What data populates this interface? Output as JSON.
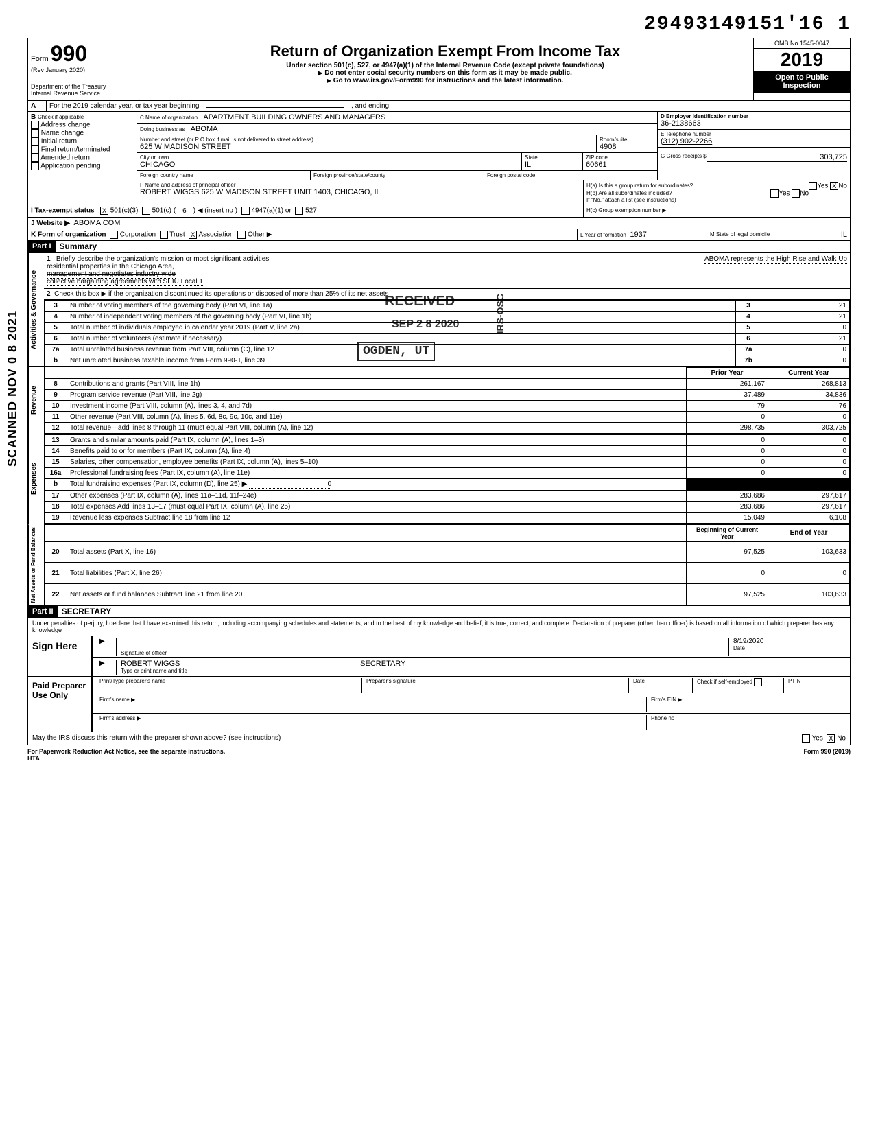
{
  "doc_id": "29493149151'16 1",
  "scanned_text": "SCANNED NOV 0 8 2021",
  "header": {
    "form_label": "Form",
    "form_number": "990",
    "rev": "(Rev January 2020)",
    "dept": "Department of the Treasury",
    "irs": "Internal Revenue Service",
    "title": "Return of Organization Exempt From Income Tax",
    "subtitle1": "Under section 501(c), 527, or 4947(a)(1) of the Internal Revenue Code (except private foundations)",
    "subtitle2": "Do not enter social security numbers on this form as it may be made public.",
    "subtitle3": "Go to www.irs.gov/Form990 for instructions and the latest information.",
    "omb": "OMB No 1545-0047",
    "year_prefix": "20",
    "year_suffix": "19",
    "open_public1": "Open to Public",
    "open_public2": "Inspection"
  },
  "section_a": {
    "line": "For the 2019 calendar year, or tax year beginning",
    "ending": ", and ending"
  },
  "section_b": {
    "header": "Check if applicable",
    "items": [
      "Address change",
      "Name change",
      "Initial return",
      "Final return/terminated",
      "Amended return",
      "Application pending"
    ]
  },
  "section_c": {
    "name_label": "C  Name of organization",
    "name": "APARTMENT BUILDING OWNERS AND MANAGERS",
    "dba_label": "Doing business as",
    "dba": "ABOMA",
    "addr_label": "Number and street (or P O box if mail is not delivered to street address)",
    "addr": "625 W MADISON STREET",
    "room_label": "Room/suite",
    "room": "4908",
    "city_label": "City or town",
    "city": "CHICAGO",
    "state_label": "State",
    "state": "IL",
    "zip_label": "ZIP code",
    "zip": "60661",
    "foreign_country": "Foreign country name",
    "foreign_province": "Foreign province/state/county",
    "foreign_postal": "Foreign postal code"
  },
  "section_d": {
    "label": "D   Employer identification number",
    "value": "36-2138663"
  },
  "section_e": {
    "label": "E   Telephone number",
    "value": "(312) 902-2266"
  },
  "section_g": {
    "label": "G   Gross receipts $",
    "value": "303,725"
  },
  "section_f": {
    "label": "F  Name and address of principal officer",
    "value": "ROBERT WIGGS 625 W MADISON STREET UNIT 1403, CHICAGO, IL"
  },
  "section_h": {
    "a": "H(a) Is this a group return for subordinates?",
    "b": "H(b) Are all subordinates included?",
    "note": "If \"No,\" attach a list (see instructions)",
    "c": "H(c) Group exemption number ▶",
    "yes": "Yes",
    "no": "No",
    "a_checked": "X"
  },
  "section_i": {
    "label": "I     Tax-exempt status",
    "c3": "501(c)(3)",
    "c3_checked": "X",
    "c": "501(c)",
    "c_num_prefix": "(",
    "c_num": "6",
    "c_num_suffix": ")  ◀ (insert no )",
    "a1": "4947(a)(1) or",
    "s527": "527"
  },
  "section_j": {
    "label": "J     Website  ▶",
    "value": "ABOMA COM"
  },
  "section_k": {
    "label": "K   Form of organization",
    "corp": "Corporation",
    "trust": "Trust",
    "assoc": "Association",
    "assoc_checked": "X",
    "other": "Other ▶"
  },
  "section_l": {
    "label": "L Year of formation",
    "value": "1937"
  },
  "section_m": {
    "label": "M State of legal domicile",
    "value": "IL"
  },
  "part1": {
    "header": "Part I",
    "title": "Summary",
    "mission_label": "Briefly describe the organization's mission or most significant activities",
    "mission1": "ABOMA represents the High Rise and Walk Up",
    "mission2": "residential properties in the Chicago Area,",
    "mission3": "management and negotiates industry wide",
    "mission4": "collective bargaining agreements with SEIU Local 1",
    "line2": "Check this box  ▶       if the organization discontinued its operations or disposed of more than 25% of its net assets",
    "rows_governance": [
      {
        "n": "3",
        "label": "Number of voting members of the governing body (Part VI, line 1a)",
        "k": "3",
        "v": "21"
      },
      {
        "n": "4",
        "label": "Number of independent voting members of the governing body (Part VI, line 1b)",
        "k": "4",
        "v": "21"
      },
      {
        "n": "5",
        "label": "Total number of individuals employed in calendar year 2019 (Part V, line 2a)",
        "k": "5",
        "v": "0"
      },
      {
        "n": "6",
        "label": "Total number of volunteers (estimate if necessary)",
        "k": "6",
        "v": "21"
      },
      {
        "n": "7a",
        "label": "Total unrelated business revenue from Part VIII, column (C), line 12",
        "k": "7a",
        "v": "0"
      },
      {
        "n": "b",
        "label": "Net unrelated business taxable income from Form 990-T, line 39",
        "k": "7b",
        "v": "0"
      }
    ],
    "col_prior": "Prior Year",
    "col_current": "Current Year",
    "rows_revenue": [
      {
        "n": "8",
        "label": "Contributions and grants (Part VIII, line 1h)",
        "p": "261,167",
        "c": "268,813"
      },
      {
        "n": "9",
        "label": "Program service revenue (Part VIII, line 2g)",
        "p": "37,489",
        "c": "34,836"
      },
      {
        "n": "10",
        "label": "Investment income (Part VIII, column (A), lines 3, 4, and 7d)",
        "p": "79",
        "c": "76"
      },
      {
        "n": "11",
        "label": "Other revenue (Part VIII, column (A), lines 5, 6d, 8c, 9c, 10c, and 11e)",
        "p": "0",
        "c": "0"
      },
      {
        "n": "12",
        "label": "Total revenue—add lines 8 through 11 (must equal Part VIII, column (A), line 12)",
        "p": "298,735",
        "c": "303,725"
      }
    ],
    "rows_expenses": [
      {
        "n": "13",
        "label": "Grants and similar amounts paid (Part IX, column (A), lines 1–3)",
        "p": "0",
        "c": "0"
      },
      {
        "n": "14",
        "label": "Benefits paid to or for members (Part IX, column (A), line 4)",
        "p": "0",
        "c": "0"
      },
      {
        "n": "15",
        "label": "Salaries, other compensation, employee benefits (Part IX, column (A), lines 5–10)",
        "p": "0",
        "c": "0"
      },
      {
        "n": "16a",
        "label": "Professional fundraising fees (Part IX, column (A), line 11e)",
        "p": "0",
        "c": "0"
      },
      {
        "n": "b",
        "label": "Total fundraising expenses (Part IX, column (D), line 25)  ▶",
        "p": "0",
        "c": "",
        "shaded": true
      },
      {
        "n": "17",
        "label": "Other expenses (Part IX, column (A), lines 11a–11d, 11f–24e)",
        "p": "283,686",
        "c": "297,617"
      },
      {
        "n": "18",
        "label": "Total expenses Add lines 13–17 (must equal Part IX, column (A), line 25)",
        "p": "283,686",
        "c": "297,617"
      },
      {
        "n": "19",
        "label": "Revenue less expenses Subtract line 18 from line 12",
        "p": "15,049",
        "c": "6,108"
      }
    ],
    "col_begin": "Beginning of Current Year",
    "col_end": "End of Year",
    "rows_net": [
      {
        "n": "20",
        "label": "Total assets (Part X, line 16)",
        "p": "97,525",
        "c": "103,633"
      },
      {
        "n": "21",
        "label": "Total liabilities (Part X, line 26)",
        "p": "0",
        "c": "0"
      },
      {
        "n": "22",
        "label": "Net assets or fund balances Subtract line 21 from line 20",
        "p": "97,525",
        "c": "103,633"
      }
    ],
    "vert_activities": "Activities & Governance",
    "vert_revenue": "Revenue",
    "vert_expenses": "Expenses",
    "vert_net": "Net Assets or\nFund Balances"
  },
  "stamps": {
    "received": "RECEIVED",
    "date": "SEP 2 8 2020",
    "irs_osc": "IRS-OSC",
    "ogden": "OGDEN, UT"
  },
  "part2": {
    "header": "Part II",
    "title": "SECRETARY",
    "perjury": "Under penalties of perjury, I declare that I have examined this return, including accompanying schedules and statements, and to the best of my knowledge and belief, it is true, correct, and complete. Declaration of preparer (other than officer) is based on all information of which preparer has any knowledge",
    "sign_here": "Sign Here",
    "sig_of_officer": "Signature of officer",
    "date_label": "Date",
    "date": "8/19/2020",
    "name": "ROBERT WIGGS",
    "type_print": "Type or print name and title",
    "paid": "Paid Preparer Use Only",
    "prep_name": "Print/Type preparer's name",
    "prep_sig": "Preparer's signature",
    "check_self": "Check        if self-employed",
    "ptin": "PTIN",
    "firm_name": "Firm's name    ▶",
    "firm_ein": "Firm's EIN ▶",
    "firm_addr": "Firm's address ▶",
    "phone": "Phone no",
    "may_irs": "May the IRS discuss this return with the preparer shown above? (see instructions)",
    "may_no_checked": "X",
    "yes": "Yes",
    "no": "No"
  },
  "footer": {
    "left": "For Paperwork Reduction Act Notice, see the separate instructions.",
    "hta": "HTA",
    "right": "Form 990 (2019)"
  }
}
